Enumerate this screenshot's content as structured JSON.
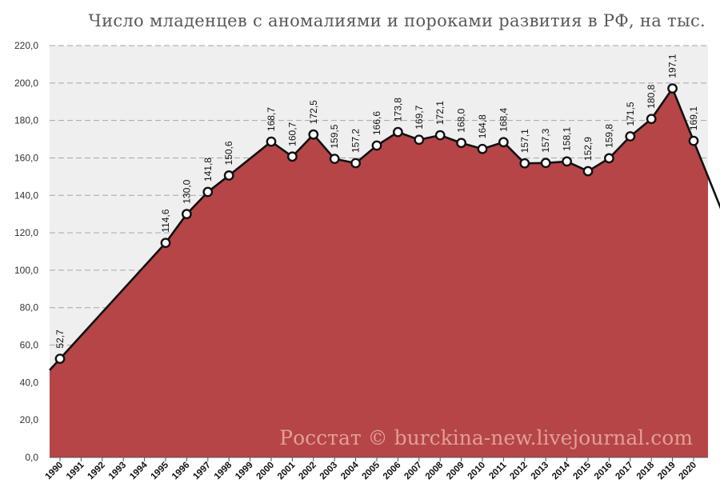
{
  "title": "Число младенцев с аномалиями и пороками развития в РФ, на тыс.",
  "watermark": "Росстат © burckina-new.livejournal.com",
  "colors": {
    "area": "#b64547",
    "plot_bg": "#efefef",
    "line": "#111111",
    "grid": "#a6a6a6",
    "marker_fill": "#ffffff"
  },
  "chart_data": {
    "type": "area",
    "title": "Число младенцев с аномалиями и пороками развития в РФ, на тыс.",
    "xlabel": "",
    "ylabel": "",
    "ylim": [
      0,
      220
    ],
    "ytick_step": 20,
    "ytick_labels": [
      "0,0",
      "20,0",
      "40,0",
      "60,0",
      "80,0",
      "100,0",
      "120,0",
      "140,0",
      "160,0",
      "180,0",
      "200,0",
      "220,0"
    ],
    "grid": true,
    "x_labels": [
      "1990",
      "1991",
      "1992",
      "1993",
      "1994",
      "1995",
      "1996",
      "1997",
      "1998",
      "1999",
      "2000",
      "2001",
      "2002",
      "2003",
      "2004",
      "2005",
      "2006",
      "2007",
      "2008",
      "2009",
      "2010",
      "2011",
      "2012",
      "2013",
      "2014",
      "2015",
      "2016",
      "2017",
      "2018",
      "2019",
      "2020"
    ],
    "points": [
      {
        "x": "1990",
        "y": 52.7,
        "label": "52,7"
      },
      {
        "x": "1995",
        "y": 114.6,
        "label": "114,6"
      },
      {
        "x": "1996",
        "y": 130.0,
        "label": "130,0"
      },
      {
        "x": "1997",
        "y": 141.8,
        "label": "141,8"
      },
      {
        "x": "1998",
        "y": 150.6,
        "label": "150,6"
      },
      {
        "x": "2000",
        "y": 168.7,
        "label": "168,7"
      },
      {
        "x": "2001",
        "y": 160.7,
        "label": "160,7"
      },
      {
        "x": "2002",
        "y": 172.5,
        "label": "172,5"
      },
      {
        "x": "2003",
        "y": 159.5,
        "label": "159,5"
      },
      {
        "x": "2004",
        "y": 157.2,
        "label": "157,2"
      },
      {
        "x": "2005",
        "y": 166.6,
        "label": "166,6"
      },
      {
        "x": "2006",
        "y": 173.8,
        "label": "173,8"
      },
      {
        "x": "2007",
        "y": 169.7,
        "label": "169,7"
      },
      {
        "x": "2008",
        "y": 172.1,
        "label": "172,1"
      },
      {
        "x": "2009",
        "y": 168.0,
        "label": "168,0"
      },
      {
        "x": "2010",
        "y": 164.8,
        "label": "164,8"
      },
      {
        "x": "2011",
        "y": 168.4,
        "label": "168,4"
      },
      {
        "x": "2012",
        "y": 157.1,
        "label": "157,1"
      },
      {
        "x": "2013",
        "y": 157.3,
        "label": "157,3"
      },
      {
        "x": "2014",
        "y": 158.1,
        "label": "158,1"
      },
      {
        "x": "2015",
        "y": 152.9,
        "label": "152,9"
      },
      {
        "x": "2016",
        "y": 159.8,
        "label": "159,8"
      },
      {
        "x": "2017",
        "y": 171.5,
        "label": "171,5"
      },
      {
        "x": "2018",
        "y": 180.8,
        "label": "180,8"
      },
      {
        "x": "2019",
        "y": 197.1,
        "label": "197,1"
      },
      {
        "x": "2020",
        "y": 169.1,
        "label": "169,1"
      }
    ]
  }
}
